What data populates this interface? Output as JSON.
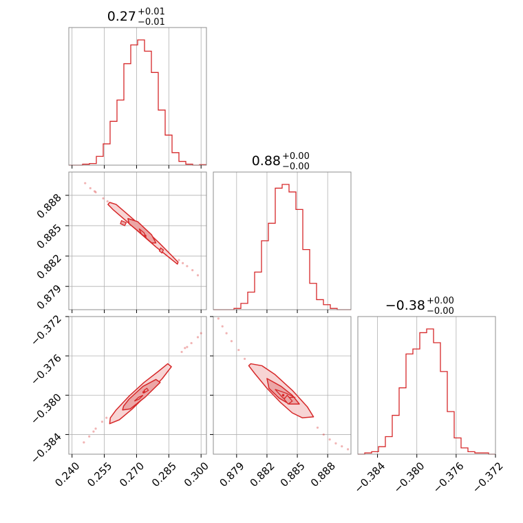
{
  "chart_data": {
    "type": "corner",
    "colors": {
      "series": "#d62728",
      "fill_outer": "#f7d4d4",
      "fill_inner": "#eba6a6",
      "grid": "#b0b0b0",
      "frame": "#8c8c8c"
    },
    "grid": true,
    "parameters": [
      {
        "key": "p0",
        "range": [
          0.2385,
          0.3025
        ],
        "ticks": [
          0.24,
          0.255,
          0.27,
          0.285,
          0.3
        ],
        "tick_labels": [
          "0.240",
          "0.255",
          "0.270",
          "0.285",
          "0.300"
        ],
        "title": {
          "value": "0.27",
          "plus": "+0.01",
          "minus": "−0.01"
        }
      },
      {
        "key": "p1",
        "range": [
          0.8767,
          0.8903
        ],
        "ticks": [
          0.879,
          0.882,
          0.885,
          0.888
        ],
        "tick_labels": [
          "0.879",
          "0.882",
          "0.885",
          "0.888"
        ],
        "title": {
          "value": "0.88",
          "plus": "+0.00",
          "minus": "−0.00"
        }
      },
      {
        "key": "p2",
        "range": [
          -0.386,
          -0.372
        ],
        "ticks": [
          -0.384,
          -0.38,
          -0.376,
          -0.372
        ],
        "tick_labels": [
          "−0.384",
          "−0.380",
          "−0.376",
          "−0.372"
        ],
        "title": {
          "value": "−0.38",
          "plus": "+0.00",
          "minus": "−0.00"
        }
      }
    ],
    "histograms": [
      {
        "param": "p0",
        "bin_edges": [
          0.2385,
          0.2417,
          0.2449,
          0.2481,
          0.2513,
          0.2545,
          0.2577,
          0.2609,
          0.2641,
          0.2673,
          0.2705,
          0.2737,
          0.2769,
          0.2801,
          0.2833,
          0.2865,
          0.2897,
          0.2929,
          0.2961,
          0.2993,
          0.3025
        ],
        "counts": [
          0,
          0,
          0.008,
          0.013,
          0.07,
          0.17,
          0.35,
          0.52,
          0.81,
          0.96,
          1.0,
          0.91,
          0.74,
          0.44,
          0.24,
          0.1,
          0.03,
          0.008,
          0,
          0.004
        ]
      },
      {
        "param": "p1",
        "bin_edges": [
          0.8767,
          0.87738,
          0.87806,
          0.87874,
          0.87942,
          0.8801,
          0.88078,
          0.88146,
          0.88214,
          0.88282,
          0.8835,
          0.88418,
          0.88486,
          0.88554,
          0.88622,
          0.8869,
          0.88758,
          0.88826,
          0.88894,
          0.88962,
          0.8903
        ],
        "counts": [
          0,
          0,
          0,
          0.01,
          0.05,
          0.14,
          0.3,
          0.55,
          0.69,
          0.97,
          1.0,
          0.94,
          0.8,
          0.48,
          0.21,
          0.08,
          0.04,
          0.01,
          0,
          0
        ]
      },
      {
        "param": "p2",
        "bin_edges": [
          -0.386,
          -0.3853,
          -0.3846,
          -0.3839,
          -0.3832,
          -0.3825,
          -0.3818,
          -0.3811,
          -0.3804,
          -0.3797,
          -0.379,
          -0.3783,
          -0.3776,
          -0.3769,
          -0.3762,
          -0.3755,
          -0.3748,
          -0.3741,
          -0.3734,
          -0.3727,
          -0.372
        ],
        "counts": [
          0,
          0.01,
          0.02,
          0.06,
          0.14,
          0.31,
          0.53,
          0.8,
          0.84,
          0.97,
          1.0,
          0.89,
          0.66,
          0.34,
          0.13,
          0.05,
          0.02,
          0.01,
          0.01,
          0
        ]
      }
    ],
    "scatter_panels": [
      {
        "x": "p0",
        "y": "p1",
        "samples": [
          [
            0.2461,
            0.8892
          ],
          [
            0.2485,
            0.8887
          ],
          [
            0.251,
            0.8883
          ],
          [
            0.2545,
            0.8877
          ],
          [
            0.2565,
            0.8874
          ],
          [
            0.2585,
            0.887
          ],
          [
            0.2915,
            0.8813
          ],
          [
            0.2935,
            0.881
          ],
          [
            0.296,
            0.8806
          ],
          [
            0.2985,
            0.8801
          ],
          [
            0.2505,
            0.8884
          ],
          [
            0.2897,
            0.8816
          ]
        ],
        "outer_contour": [
          [
            0.2575,
            0.8873
          ],
          [
            0.2605,
            0.8871
          ],
          [
            0.2665,
            0.886
          ],
          [
            0.2735,
            0.8847
          ],
          [
            0.2805,
            0.8833
          ],
          [
            0.287,
            0.8819
          ],
          [
            0.2893,
            0.8814
          ],
          [
            0.289,
            0.8812
          ],
          [
            0.2855,
            0.8818
          ],
          [
            0.279,
            0.8829
          ],
          [
            0.272,
            0.8842
          ],
          [
            0.265,
            0.8855
          ],
          [
            0.259,
            0.8866
          ],
          [
            0.2567,
            0.8871
          ]
        ],
        "middle_contour": [
          [
            0.266,
            0.8857
          ],
          [
            0.2705,
            0.8854
          ],
          [
            0.277,
            0.8841
          ],
          [
            0.279,
            0.8833
          ],
          [
            0.277,
            0.8833
          ],
          [
            0.2705,
            0.8845
          ],
          [
            0.2665,
            0.8852
          ]
        ],
        "inner_contours": [
          [
            [
              0.2712,
              0.8847
            ],
            [
              0.2735,
              0.8843
            ],
            [
              0.2745,
              0.8838
            ],
            [
              0.2722,
              0.8842
            ]
          ],
          [
            [
              0.263,
              0.8855
            ],
            [
              0.2652,
              0.8853
            ],
            [
              0.2645,
              0.885
            ],
            [
              0.2625,
              0.8852
            ]
          ],
          [
            [
              0.2812,
              0.8828
            ],
            [
              0.2825,
              0.8826
            ],
            [
              0.2818,
              0.8823
            ],
            [
              0.2806,
              0.8825
            ]
          ]
        ],
        "peak": [
          0.274,
          0.884
        ]
      },
      {
        "x": "p0",
        "y": "p2",
        "samples": [
          [
            0.2455,
            -0.3848
          ],
          [
            0.248,
            -0.3842
          ],
          [
            0.251,
            -0.3834
          ],
          [
            0.254,
            -0.3827
          ],
          [
            0.256,
            -0.3823
          ],
          [
            0.291,
            -0.3756
          ],
          [
            0.2935,
            -0.3751
          ],
          [
            0.2955,
            -0.3747
          ],
          [
            0.2985,
            -0.3741
          ],
          [
            0.3,
            -0.3737
          ],
          [
            0.25,
            -0.3837
          ],
          [
            0.2925,
            -0.3752
          ]
        ],
        "outer_contour": [
          [
            0.2575,
            -0.3829
          ],
          [
            0.262,
            -0.3825
          ],
          [
            0.268,
            -0.3814
          ],
          [
            0.275,
            -0.3799
          ],
          [
            0.282,
            -0.3783
          ],
          [
            0.2862,
            -0.3771
          ],
          [
            0.2845,
            -0.3768
          ],
          [
            0.28,
            -0.3776
          ],
          [
            0.2735,
            -0.3787
          ],
          [
            0.2665,
            -0.3801
          ],
          [
            0.2605,
            -0.3815
          ],
          [
            0.2578,
            -0.3823
          ]
        ],
        "middle_contour": [
          [
            0.2635,
            -0.3815
          ],
          [
            0.267,
            -0.3814
          ],
          [
            0.274,
            -0.3802
          ],
          [
            0.281,
            -0.3787
          ],
          [
            0.279,
            -0.3784
          ],
          [
            0.273,
            -0.3791
          ],
          [
            0.2665,
            -0.3804
          ],
          [
            0.264,
            -0.3811
          ]
        ],
        "inner_contours": [
          [
            [
              0.269,
              -0.3806
            ],
            [
              0.2712,
              -0.3804
            ],
            [
              0.273,
              -0.38
            ],
            [
              0.271,
              -0.3802
            ]
          ],
          [
            [
              0.274,
              -0.3797
            ],
            [
              0.2755,
              -0.3795
            ],
            [
              0.2748,
              -0.3793
            ],
            [
              0.2735,
              -0.3795
            ]
          ]
        ],
        "peak": [
          0.2733,
          -0.3797
        ]
      },
      {
        "x": "p1",
        "y": "p2",
        "samples": [
          [
            0.8772,
            -0.3722
          ],
          [
            0.8776,
            -0.373
          ],
          [
            0.878,
            -0.3737
          ],
          [
            0.8785,
            -0.3745
          ],
          [
            0.8792,
            -0.3754
          ],
          [
            0.8798,
            -0.3763
          ],
          [
            0.887,
            -0.3833
          ],
          [
            0.8876,
            -0.384
          ],
          [
            0.8882,
            -0.3845
          ],
          [
            0.8888,
            -0.3849
          ],
          [
            0.8894,
            -0.3852
          ],
          [
            0.89,
            -0.3855
          ]
        ],
        "outer_contour": [
          [
            0.8804,
            -0.3768
          ],
          [
            0.8815,
            -0.377
          ],
          [
            0.8828,
            -0.3779
          ],
          [
            0.8845,
            -0.3795
          ],
          [
            0.886,
            -0.3812
          ],
          [
            0.8866,
            -0.3822
          ],
          [
            0.8855,
            -0.3823
          ],
          [
            0.8845,
            -0.3818
          ],
          [
            0.8833,
            -0.3807
          ],
          [
            0.882,
            -0.3793
          ],
          [
            0.8808,
            -0.3778
          ],
          [
            0.8802,
            -0.377
          ]
        ],
        "middle_contour": [
          [
            0.882,
            -0.3783
          ],
          [
            0.8834,
            -0.3791
          ],
          [
            0.8845,
            -0.38
          ],
          [
            0.8852,
            -0.3809
          ],
          [
            0.8842,
            -0.3809
          ],
          [
            0.8832,
            -0.3803
          ],
          [
            0.8822,
            -0.3793
          ]
        ],
        "inner_contours": [
          [
            [
              0.8828,
              -0.3794
            ],
            [
              0.8839,
              -0.3798
            ],
            [
              0.8847,
              -0.3802
            ],
            [
              0.8836,
              -0.3803
            ]
          ],
          [
            [
              0.884,
              -0.38
            ],
            [
              0.8845,
              -0.3806
            ],
            [
              0.8841,
              -0.3809
            ],
            [
              0.8837,
              -0.3804
            ]
          ]
        ],
        "peak": [
          0.8836,
          -0.38
        ]
      }
    ]
  }
}
